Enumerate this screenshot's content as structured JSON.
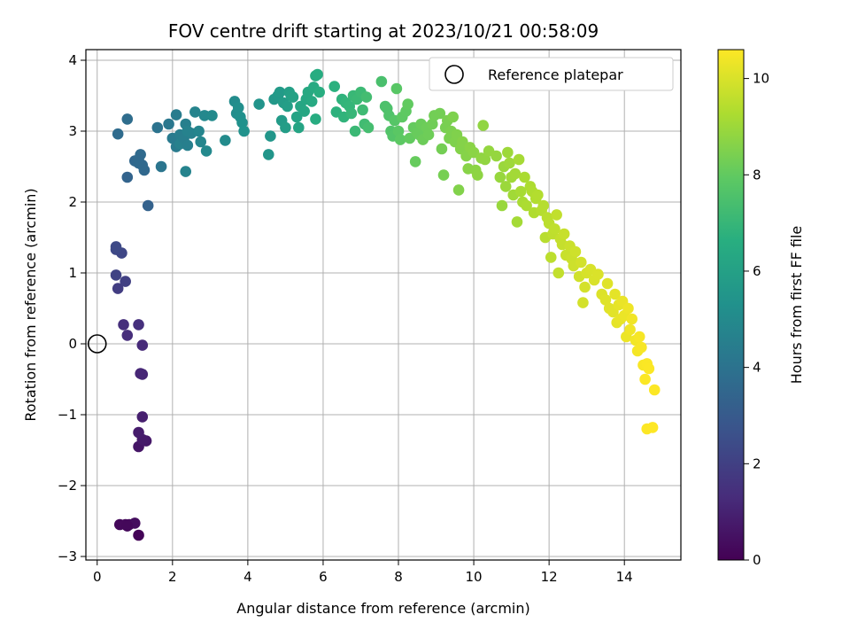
{
  "chart_data": {
    "type": "scatter",
    "title": "FOV centre drift starting at 2023/10/21 00:58:09",
    "xlabel": "Angular distance from reference (arcmin)",
    "ylabel": "Rotation from reference (arcmin)",
    "xlim": [
      -0.3,
      15.5
    ],
    "ylim": [
      -3.05,
      4.15
    ],
    "xticks": [
      0,
      2,
      4,
      6,
      8,
      10,
      12,
      14
    ],
    "yticks": [
      -3,
      -2,
      -1,
      0,
      1,
      2,
      3,
      4
    ],
    "grid": true,
    "legend": {
      "position": "top-right",
      "entries": [
        "Reference platepar"
      ]
    },
    "reference_point": {
      "x": 0,
      "y": 0
    },
    "colorbar": {
      "label": "Hours from first FF file",
      "colormap": "viridis",
      "range": [
        0,
        10.6
      ],
      "ticks": [
        0,
        2,
        4,
        6,
        8,
        10
      ]
    },
    "points": [
      [
        1.1,
        -2.7,
        0.1
      ],
      [
        0.6,
        -2.55,
        0.2
      ],
      [
        0.75,
        -2.55,
        0.25
      ],
      [
        0.85,
        -2.55,
        0.3
      ],
      [
        1.0,
        -2.53,
        0.35
      ],
      [
        0.8,
        -2.57,
        0.22
      ],
      [
        1.1,
        -1.45,
        0.6
      ],
      [
        1.3,
        -1.37,
        0.7
      ],
      [
        1.2,
        -1.35,
        0.75
      ],
      [
        1.1,
        -1.25,
        0.8
      ],
      [
        1.2,
        -1.03,
        0.9
      ],
      [
        1.2,
        -0.43,
        1.1
      ],
      [
        1.15,
        -0.42,
        1.15
      ],
      [
        1.2,
        -0.02,
        1.25
      ],
      [
        0.8,
        0.12,
        1.35
      ],
      [
        0.7,
        0.27,
        1.4
      ],
      [
        1.1,
        0.27,
        1.45
      ],
      [
        0.55,
        0.78,
        1.9
      ],
      [
        0.75,
        0.88,
        2.0
      ],
      [
        0.5,
        0.97,
        2.1
      ],
      [
        0.65,
        1.28,
        2.25
      ],
      [
        0.5,
        1.33,
        2.3
      ],
      [
        0.5,
        1.37,
        2.35
      ],
      [
        1.35,
        1.95,
        3.3
      ],
      [
        0.8,
        2.35,
        3.4
      ],
      [
        1.0,
        2.58,
        3.5
      ],
      [
        1.25,
        2.45,
        3.55
      ],
      [
        1.2,
        2.52,
        3.6
      ],
      [
        1.15,
        2.67,
        3.65
      ],
      [
        1.1,
        2.55,
        3.6
      ],
      [
        1.1,
        2.6,
        3.62
      ],
      [
        0.55,
        2.96,
        3.7
      ],
      [
        0.8,
        3.17,
        3.75
      ],
      [
        1.6,
        3.05,
        4.0
      ],
      [
        1.7,
        2.5,
        4.1
      ],
      [
        1.9,
        3.1,
        4.2
      ],
      [
        2.0,
        2.9,
        4.3
      ],
      [
        2.1,
        2.78,
        4.35
      ],
      [
        2.1,
        3.23,
        4.4
      ],
      [
        2.2,
        2.95,
        4.45
      ],
      [
        2.3,
        2.85,
        4.5
      ],
      [
        2.35,
        3.1,
        4.55
      ],
      [
        2.2,
        2.82,
        4.6
      ],
      [
        2.3,
        2.9,
        4.5
      ],
      [
        2.4,
        2.8,
        4.55
      ],
      [
        2.5,
        2.97,
        4.6
      ],
      [
        2.4,
        3.0,
        4.65
      ],
      [
        2.35,
        2.43,
        4.7
      ],
      [
        2.6,
        3.27,
        4.75
      ],
      [
        2.7,
        3.0,
        4.8
      ],
      [
        2.75,
        2.85,
        4.85
      ],
      [
        2.85,
        3.22,
        4.9
      ],
      [
        2.9,
        2.72,
        4.95
      ],
      [
        3.05,
        3.22,
        5.0
      ],
      [
        3.4,
        2.87,
        5.05
      ],
      [
        3.65,
        3.42,
        5.1
      ],
      [
        3.7,
        3.25,
        5.15
      ],
      [
        3.75,
        3.33,
        5.2
      ],
      [
        3.8,
        3.2,
        5.25
      ],
      [
        3.85,
        3.12,
        5.3
      ],
      [
        3.9,
        3.0,
        5.35
      ],
      [
        4.3,
        3.38,
        5.45
      ],
      [
        4.55,
        2.67,
        5.5
      ],
      [
        4.6,
        2.93,
        5.55
      ],
      [
        4.7,
        3.45,
        5.6
      ],
      [
        4.8,
        3.5,
        5.65
      ],
      [
        4.85,
        3.55,
        5.7
      ],
      [
        4.9,
        3.15,
        5.75
      ],
      [
        4.95,
        3.4,
        5.8
      ],
      [
        5.0,
        3.05,
        5.85
      ],
      [
        5.05,
        3.35,
        5.9
      ],
      [
        5.1,
        3.55,
        5.95
      ],
      [
        5.15,
        3.5,
        6.0
      ],
      [
        5.2,
        3.48,
        6.05
      ],
      [
        5.3,
        3.2,
        6.1
      ],
      [
        5.35,
        3.05,
        6.15
      ],
      [
        5.4,
        3.35,
        6.2
      ],
      [
        5.5,
        3.28,
        6.25
      ],
      [
        5.55,
        3.45,
        6.3
      ],
      [
        5.6,
        3.55,
        6.35
      ],
      [
        5.7,
        3.42,
        6.4
      ],
      [
        5.75,
        3.62,
        6.45
      ],
      [
        5.8,
        3.78,
        6.5
      ],
      [
        5.85,
        3.8,
        6.52
      ],
      [
        5.8,
        3.17,
        6.55
      ],
      [
        5.9,
        3.55,
        6.6
      ],
      [
        6.3,
        3.63,
        6.7
      ],
      [
        6.35,
        3.27,
        6.75
      ],
      [
        6.5,
        3.45,
        6.8
      ],
      [
        6.55,
        3.2,
        6.85
      ],
      [
        6.6,
        3.4,
        6.9
      ],
      [
        6.7,
        3.35,
        6.95
      ],
      [
        6.75,
        3.25,
        7.0
      ],
      [
        6.8,
        3.5,
        7.05
      ],
      [
        6.85,
        3.0,
        7.1
      ],
      [
        6.9,
        3.45,
        7.1
      ],
      [
        7.0,
        3.55,
        7.15
      ],
      [
        7.05,
        3.3,
        7.2
      ],
      [
        7.1,
        3.1,
        7.25
      ],
      [
        7.15,
        3.48,
        7.3
      ],
      [
        7.2,
        3.05,
        7.35
      ],
      [
        7.55,
        3.7,
        7.45
      ],
      [
        7.65,
        3.35,
        7.5
      ],
      [
        7.7,
        3.32,
        7.55
      ],
      [
        7.75,
        3.22,
        7.6
      ],
      [
        7.8,
        3.0,
        7.65
      ],
      [
        7.85,
        2.93,
        7.7
      ],
      [
        7.9,
        3.15,
        7.75
      ],
      [
        7.95,
        3.6,
        7.8
      ],
      [
        8.0,
        3.0,
        7.85
      ],
      [
        8.05,
        2.88,
        7.9
      ],
      [
        8.1,
        3.2,
        7.92
      ],
      [
        8.2,
        3.28,
        7.95
      ],
      [
        8.25,
        3.38,
        8.0
      ],
      [
        8.3,
        2.9,
        8.02
      ],
      [
        8.4,
        3.05,
        8.05
      ],
      [
        8.45,
        2.57,
        8.08
      ],
      [
        8.5,
        2.97,
        8.1
      ],
      [
        8.55,
        2.95,
        8.12
      ],
      [
        8.6,
        3.1,
        8.15
      ],
      [
        8.65,
        2.88,
        8.18
      ],
      [
        8.75,
        3.05,
        8.2
      ],
      [
        8.8,
        2.95,
        8.22
      ],
      [
        8.9,
        3.1,
        8.25
      ],
      [
        8.95,
        3.22,
        8.28
      ],
      [
        9.1,
        3.25,
        8.3
      ],
      [
        9.15,
        2.75,
        8.32
      ],
      [
        9.2,
        2.38,
        8.35
      ],
      [
        9.25,
        3.05,
        8.38
      ],
      [
        9.3,
        3.15,
        8.4
      ],
      [
        9.35,
        2.9,
        8.42
      ],
      [
        9.4,
        3.0,
        8.45
      ],
      [
        9.45,
        3.2,
        8.48
      ],
      [
        9.5,
        2.85,
        8.5
      ],
      [
        9.55,
        2.95,
        8.52
      ],
      [
        9.6,
        2.17,
        8.55
      ],
      [
        9.65,
        2.75,
        8.58
      ],
      [
        9.7,
        2.85,
        8.6
      ],
      [
        9.8,
        2.65,
        8.62
      ],
      [
        9.85,
        2.47,
        8.65
      ],
      [
        9.9,
        2.77,
        8.68
      ],
      [
        10.0,
        2.7,
        8.7
      ],
      [
        10.05,
        2.45,
        8.72
      ],
      [
        10.1,
        2.38,
        8.75
      ],
      [
        10.2,
        2.62,
        8.78
      ],
      [
        10.25,
        3.08,
        8.8
      ],
      [
        10.3,
        2.6,
        8.82
      ],
      [
        10.4,
        2.72,
        8.85
      ],
      [
        10.6,
        2.65,
        8.88
      ],
      [
        10.7,
        2.35,
        8.9
      ],
      [
        10.75,
        1.95,
        8.92
      ],
      [
        10.8,
        2.5,
        8.95
      ],
      [
        10.85,
        2.22,
        8.98
      ],
      [
        10.9,
        2.7,
        9.0
      ],
      [
        10.95,
        2.55,
        9.02
      ],
      [
        11.0,
        2.35,
        9.05
      ],
      [
        11.05,
        2.1,
        9.08
      ],
      [
        11.1,
        2.4,
        9.1
      ],
      [
        11.15,
        1.72,
        9.12
      ],
      [
        11.2,
        2.6,
        9.15
      ],
      [
        11.25,
        2.15,
        9.18
      ],
      [
        11.3,
        2.0,
        9.2
      ],
      [
        11.35,
        2.35,
        9.22
      ],
      [
        11.4,
        1.95,
        9.25
      ],
      [
        11.5,
        2.22,
        9.28
      ],
      [
        11.55,
        2.15,
        9.3
      ],
      [
        11.6,
        1.85,
        9.32
      ],
      [
        11.65,
        2.05,
        9.35
      ],
      [
        11.7,
        2.1,
        9.38
      ],
      [
        11.8,
        1.88,
        9.4
      ],
      [
        11.85,
        1.95,
        9.42
      ],
      [
        11.9,
        1.5,
        9.45
      ],
      [
        11.95,
        1.78,
        9.48
      ],
      [
        12.0,
        1.7,
        9.5
      ],
      [
        12.05,
        1.22,
        9.52
      ],
      [
        12.1,
        1.55,
        9.55
      ],
      [
        12.15,
        1.62,
        9.58
      ],
      [
        12.2,
        1.82,
        9.6
      ],
      [
        12.25,
        1.0,
        9.62
      ],
      [
        12.3,
        1.48,
        9.65
      ],
      [
        12.35,
        1.4,
        9.68
      ],
      [
        12.4,
        1.55,
        9.7
      ],
      [
        12.45,
        1.25,
        9.72
      ],
      [
        12.55,
        1.38,
        9.75
      ],
      [
        12.6,
        1.2,
        9.78
      ],
      [
        12.65,
        1.1,
        9.8
      ],
      [
        12.7,
        1.3,
        9.82
      ],
      [
        12.8,
        0.95,
        9.85
      ],
      [
        12.85,
        1.15,
        9.88
      ],
      [
        12.9,
        0.58,
        9.9
      ],
      [
        12.95,
        0.8,
        9.92
      ],
      [
        13.0,
        1.0,
        9.95
      ],
      [
        13.1,
        1.05,
        9.98
      ],
      [
        13.2,
        0.9,
        10.0
      ],
      [
        13.3,
        0.98,
        10.02
      ],
      [
        13.4,
        0.7,
        10.05
      ],
      [
        13.5,
        0.62,
        10.08
      ],
      [
        13.55,
        0.85,
        10.1
      ],
      [
        13.6,
        0.5,
        10.12
      ],
      [
        13.7,
        0.45,
        10.15
      ],
      [
        13.75,
        0.7,
        10.18
      ],
      [
        13.8,
        0.3,
        10.2
      ],
      [
        13.85,
        0.55,
        10.22
      ],
      [
        13.9,
        0.35,
        10.25
      ],
      [
        13.95,
        0.6,
        10.28
      ],
      [
        14.0,
        0.4,
        10.3
      ],
      [
        14.05,
        0.1,
        10.32
      ],
      [
        14.1,
        0.5,
        10.35
      ],
      [
        14.15,
        0.2,
        10.38
      ],
      [
        14.2,
        0.35,
        10.4
      ],
      [
        14.3,
        0.05,
        10.42
      ],
      [
        14.35,
        -0.1,
        10.45
      ],
      [
        14.4,
        0.1,
        10.48
      ],
      [
        14.45,
        -0.05,
        10.5
      ],
      [
        14.5,
        -0.3,
        10.52
      ],
      [
        14.6,
        -0.28,
        10.55
      ],
      [
        14.55,
        -0.5,
        10.56
      ],
      [
        14.65,
        -0.35,
        10.57
      ],
      [
        14.8,
        -0.65,
        10.58
      ],
      [
        14.6,
        -1.2,
        10.59
      ],
      [
        14.75,
        -1.18,
        10.6
      ]
    ]
  }
}
